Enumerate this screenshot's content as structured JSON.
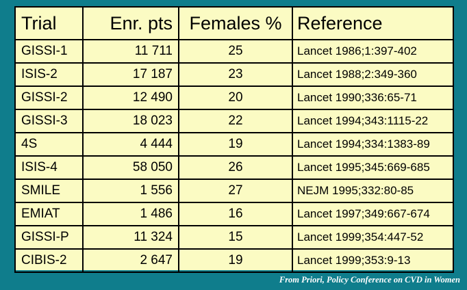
{
  "table": {
    "headers": [
      "Trial",
      "Enr. pts",
      "Females %",
      "Reference"
    ],
    "rows": [
      {
        "trial": "GISSI-1",
        "enrolled": "11 711",
        "females": "25",
        "reference": "Lancet 1986;1:397-402"
      },
      {
        "trial": "ISIS-2",
        "enrolled": "17 187",
        "females": "23",
        "reference": "Lancet 1988;2:349-360"
      },
      {
        "trial": "GISSI-2",
        "enrolled": "12 490",
        "females": "20",
        "reference": "Lancet 1990;336:65-71"
      },
      {
        "trial": "GISSI-3",
        "enrolled": "18 023",
        "females": "22",
        "reference": "Lancet 1994;343:1115-22"
      },
      {
        "trial": "4S",
        "enrolled": "4 444",
        "females": "19",
        "reference": "Lancet 1994;334:1383-89"
      },
      {
        "trial": "ISIS-4",
        "enrolled": "58 050",
        "females": "26",
        "reference": "Lancet 1995;345:669-685"
      },
      {
        "trial": "SMILE",
        "enrolled": "1 556",
        "females": "27",
        "reference": "NEJM 1995;332:80-85"
      },
      {
        "trial": "EMIAT",
        "enrolled": "1 486",
        "females": "16",
        "reference": "Lancet 1997;349:667-674"
      },
      {
        "trial": "GISSI-P",
        "enrolled": "11 324",
        "females": "15",
        "reference": "Lancet 1999;354:447-52"
      },
      {
        "trial": "CIBIS-2",
        "enrolled": "2 647",
        "females": "19",
        "reference": "Lancet 1999;353:9-13"
      }
    ]
  },
  "footer": {
    "source_note": "From Priori, Policy Conference on CVD in Women"
  },
  "colors": {
    "background": "#0F7D8C",
    "table_fill": "#FBFBC3",
    "border": "#000000",
    "footer_text": "#FFFFFF"
  }
}
